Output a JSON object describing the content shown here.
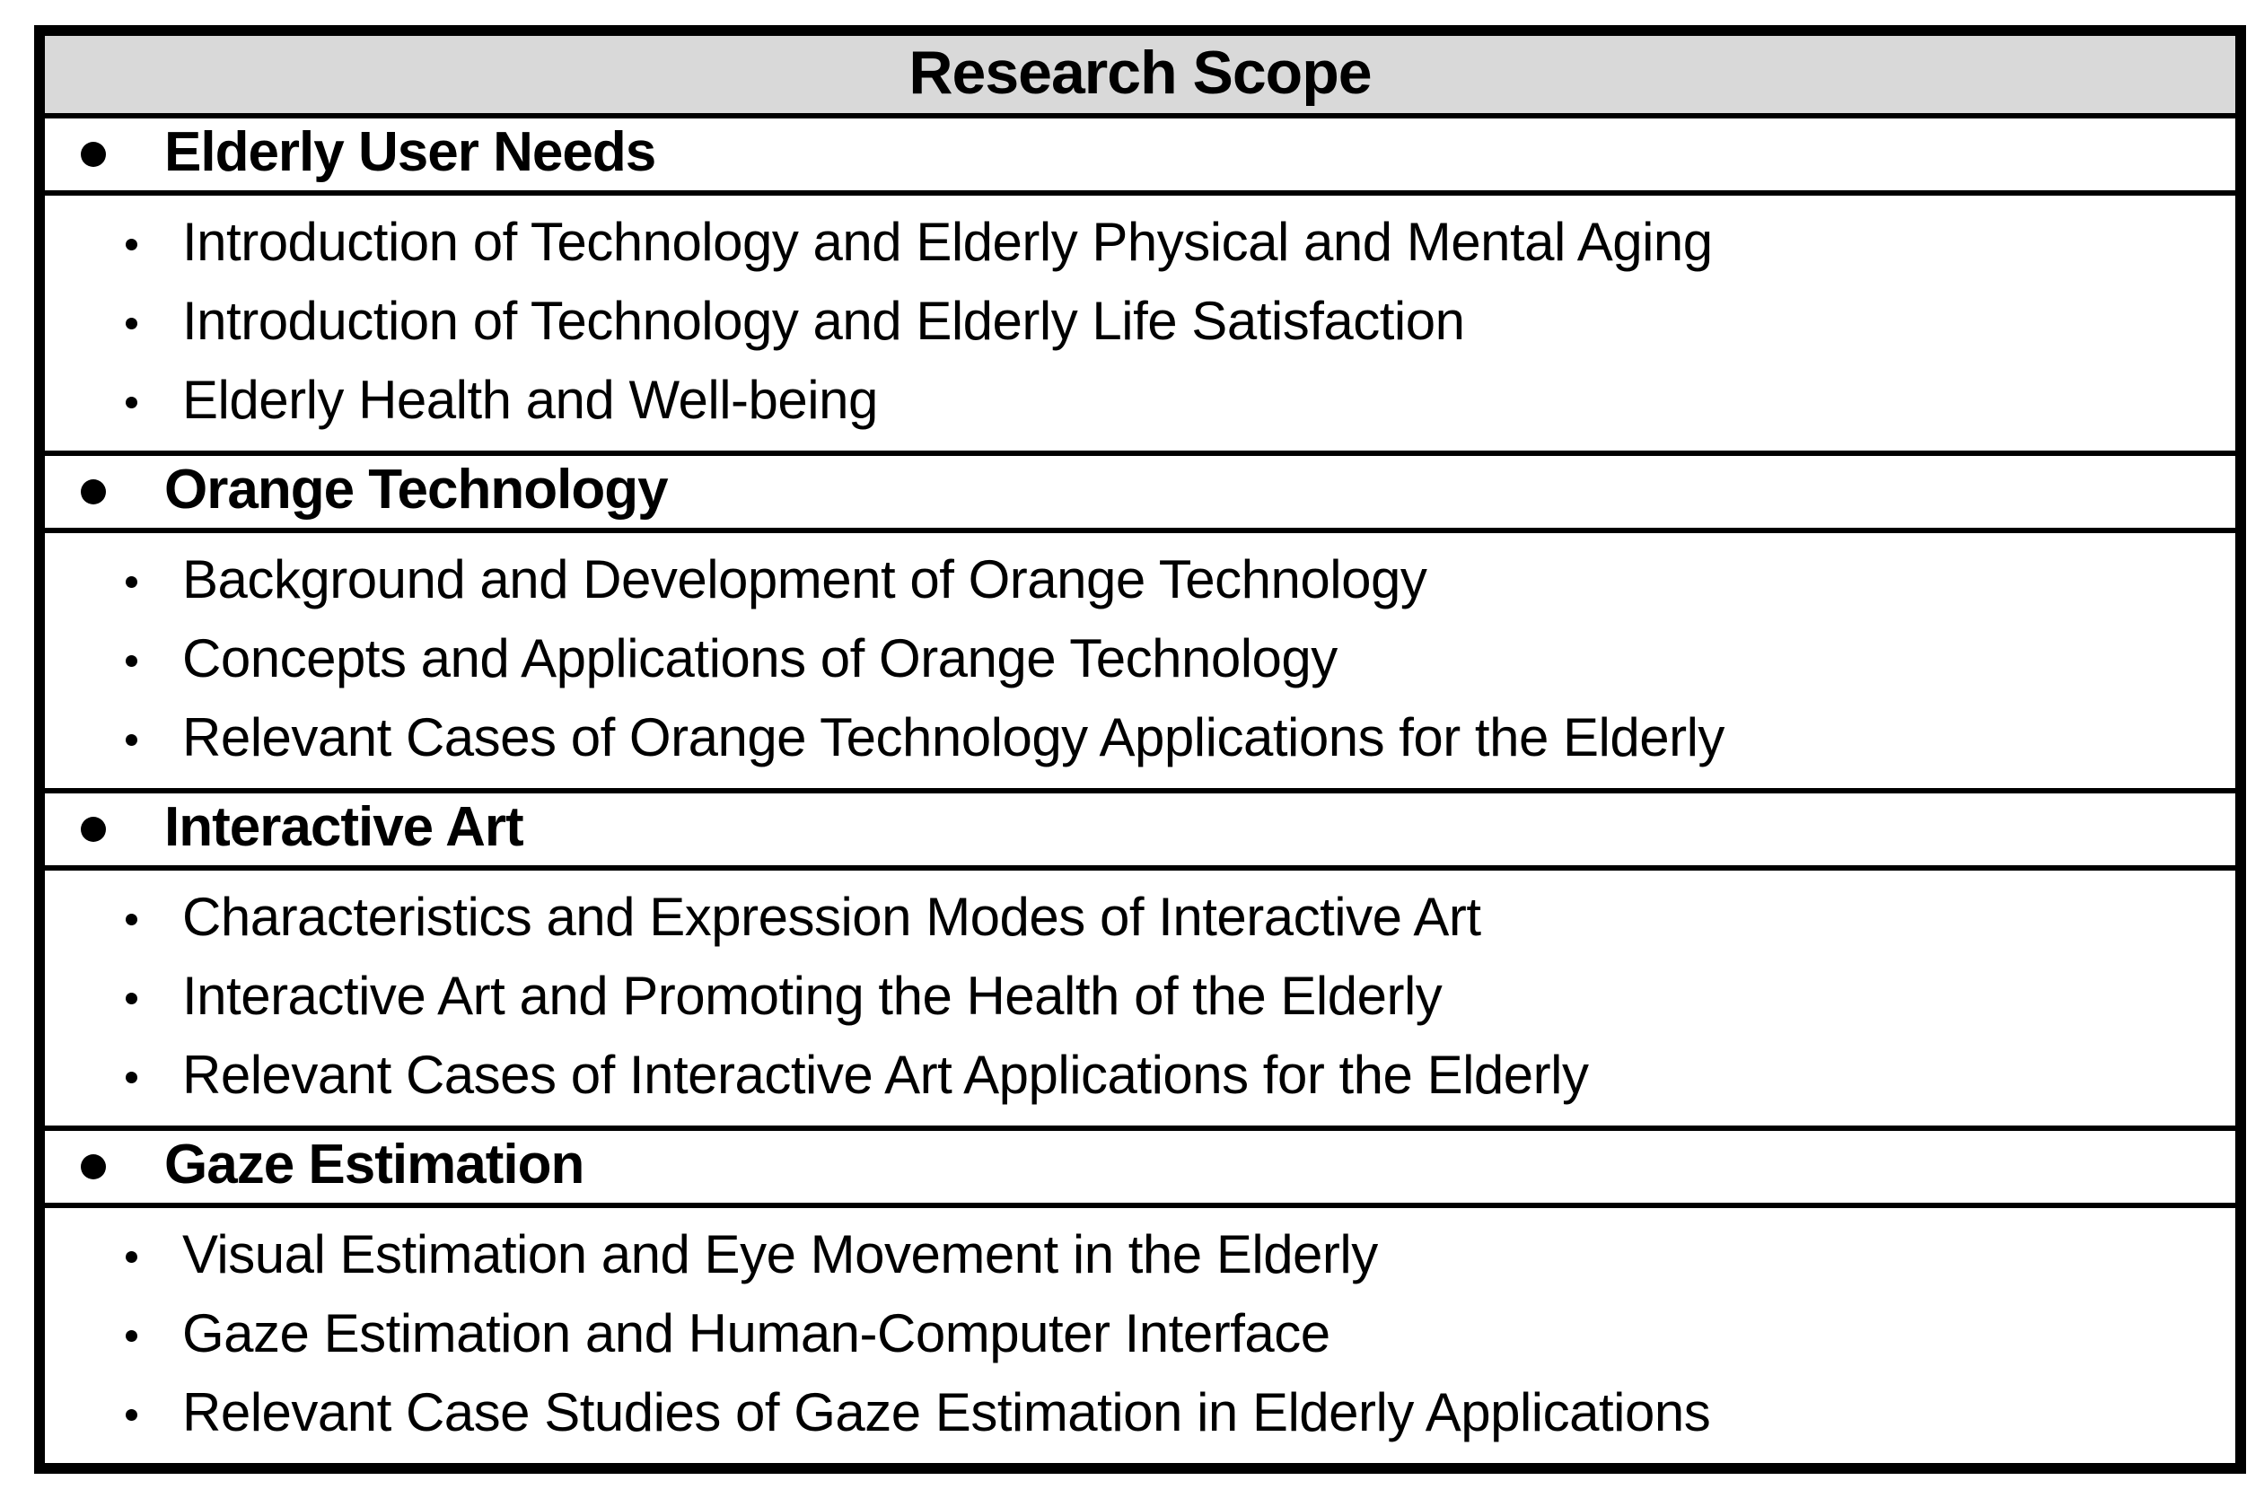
{
  "table": {
    "title": "Research Scope",
    "sections": [
      {
        "title": "Elderly User Needs",
        "items": [
          "Introduction of Technology and Elderly Physical and Mental Aging",
          "Introduction of Technology and Elderly Life Satisfaction",
          "Elderly Health and Well-being"
        ]
      },
      {
        "title": "Orange Technology",
        "items": [
          "Background and Development of Orange Technology",
          "Concepts and Applications of Orange Technology",
          "Relevant Cases of Orange Technology Applications for the Elderly"
        ]
      },
      {
        "title": "Interactive Art",
        "items": [
          "Characteristics and Expression Modes of Interactive Art",
          "Interactive Art and Promoting the Health of the Elderly",
          "Relevant Cases of Interactive Art Applications for the Elderly"
        ]
      },
      {
        "title": "Gaze Estimation",
        "items": [
          "Visual Estimation and Eye Movement in the Elderly",
          "Gaze Estimation and Human-Computer Interface",
          "Relevant Case Studies of Gaze Estimation in Elderly Applications"
        ]
      }
    ]
  },
  "colors": {
    "header_bg": "#d9d9d9",
    "border": "#000000",
    "text": "#000000",
    "page_bg": "#ffffff"
  }
}
